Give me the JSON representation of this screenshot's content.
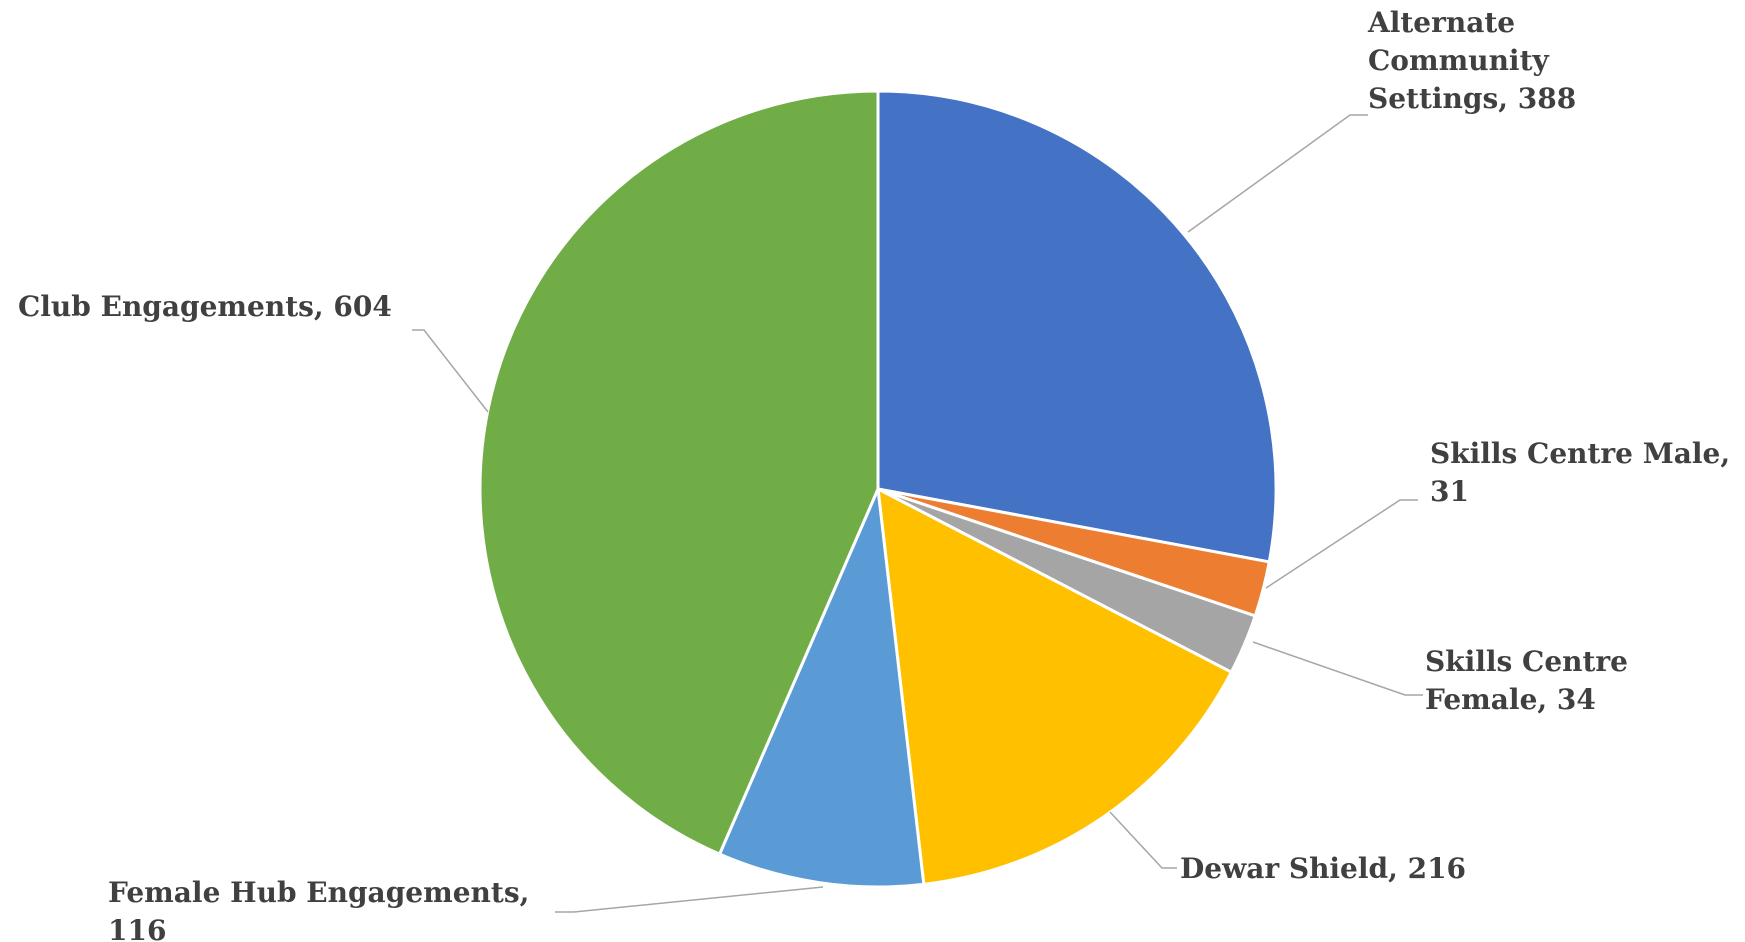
{
  "chart_data": {
    "type": "pie",
    "title": "",
    "slices": [
      {
        "label": "Alternate Community Settings",
        "value": 388,
        "display": [
          "Alternate",
          "Community",
          "Settings, 388"
        ],
        "color": "#4472c4"
      },
      {
        "label": "Skills Centre Male",
        "value": 31,
        "display": [
          "Skills Centre Male,",
          "31"
        ],
        "color": "#ed7d31"
      },
      {
        "label": "Skills Centre Female",
        "value": 34,
        "display": [
          "Skills Centre",
          "Female, 34"
        ],
        "color": "#a5a5a5"
      },
      {
        "label": "Dewar Shield",
        "value": 216,
        "display": [
          "Dewar Shield, 216"
        ],
        "color": "#ffc000"
      },
      {
        "label": "Female Hub Engagements",
        "value": 116,
        "display": [
          "Female Hub Engagements,",
          "116"
        ],
        "color": "#5b9bd5"
      },
      {
        "label": "Club Engagements",
        "value": 604,
        "display": [
          "Club Engagements, 604"
        ],
        "color": "#70ad47"
      }
    ],
    "legend": "none"
  }
}
